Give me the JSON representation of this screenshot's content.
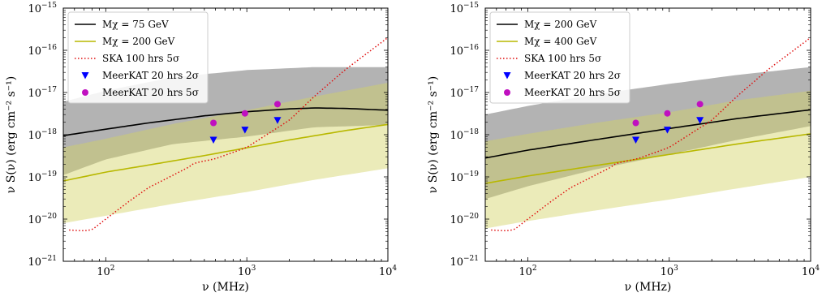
{
  "chart_data": [
    {
      "type": "line",
      "xlabel": "ν (MHz)",
      "ylabel": "ν S(ν) (erg cm⁻² s⁻¹)",
      "xscale": "log",
      "yscale": "log",
      "xlim": [
        50,
        10000
      ],
      "ylim": [
        1e-21,
        1e-15
      ],
      "xticks": [
        {
          "base": "10",
          "exp": "2"
        },
        {
          "base": "10",
          "exp": "3"
        },
        {
          "base": "10",
          "exp": "4"
        }
      ],
      "yticks": [
        {
          "base": "10",
          "exp": "−21"
        },
        {
          "base": "10",
          "exp": "−20"
        },
        {
          "base": "10",
          "exp": "−19"
        },
        {
          "base": "10",
          "exp": "−18"
        },
        {
          "base": "10",
          "exp": "−17"
        },
        {
          "base": "10",
          "exp": "−16"
        },
        {
          "base": "10",
          "exp": "−15"
        }
      ],
      "grid": false,
      "legend_position": "top-left",
      "bands": [
        {
          "color": "#808080",
          "alpha": 0.6,
          "x": [
            50,
            100,
            300,
            1000,
            3000,
            10000
          ],
          "lower": [
            1.1e-19,
            2.6e-19,
            6e-19,
            9e-19,
            1.5e-18,
            1.7e-18
          ],
          "upper": [
            6e-18,
            1.1e-17,
            2.3e-17,
            3.4e-17,
            4e-17,
            4e-17
          ]
        },
        {
          "color": "#d2d264",
          "alpha": 0.45,
          "x": [
            50,
            100,
            300,
            1000,
            3000,
            10000
          ],
          "lower": [
            8e-21,
            1.2e-20,
            2.3e-20,
            4.4e-20,
            8.5e-20,
            1.6e-19
          ],
          "upper": [
            5e-19,
            8e-19,
            1.8e-18,
            3.8e-18,
            8e-18,
            1.7e-17
          ]
        }
      ],
      "series": [
        {
          "name": "Mχ = 75 GeV",
          "style": "line",
          "color": "#000000",
          "x": [
            50,
            100,
            200,
            500,
            1000,
            2000,
            3000,
            5000,
            10000
          ],
          "y": [
            9.5e-19,
            1.35e-18,
            1.9e-18,
            2.8e-18,
            3.5e-18,
            4.1e-18,
            4.3e-18,
            4.2e-18,
            3.8e-18
          ]
        },
        {
          "name": "Mχ = 200 GeV",
          "style": "line",
          "color": "#b8b800",
          "x": [
            50,
            100,
            200,
            500,
            1000,
            2000,
            5000,
            10000
          ],
          "y": [
            8e-20,
            1.3e-19,
            1.9e-19,
            3.2e-19,
            4.9e-19,
            7.5e-19,
            1.25e-18,
            1.75e-18
          ]
        },
        {
          "name": "SKA 100 hrs 5σ",
          "style": "dotted",
          "color": "#e01010",
          "x": [
            55,
            70,
            80,
            100,
            150,
            200,
            300,
            400,
            420,
            600,
            1000,
            2000,
            3000,
            5000,
            10000
          ],
          "y": [
            5.5e-21,
            5.3e-21,
            5.6e-21,
            1e-20,
            2.8e-20,
            5.5e-20,
            1.1e-19,
            1.8e-19,
            2.1e-19,
            2.7e-19,
            5e-19,
            2.2e-18,
            8e-18,
            3.5e-17,
            2e-16
          ]
        },
        {
          "name": "MeerKAT 20 hrs 2σ",
          "style": "triangle-down",
          "color": "#0000ff",
          "x": [
            580,
            970,
            1650
          ],
          "y": [
            7.5e-19,
            1.3e-18,
            2.2e-18
          ]
        },
        {
          "name": "MeerKAT 20 hrs 5σ",
          "style": "circle",
          "color": "#c010c0",
          "x": [
            580,
            970,
            1650
          ],
          "y": [
            1.9e-18,
            3.2e-18,
            5.3e-18
          ]
        }
      ]
    },
    {
      "type": "line",
      "xlabel": "ν (MHz)",
      "ylabel": "ν S(ν) (erg cm⁻² s⁻¹)",
      "xscale": "log",
      "yscale": "log",
      "xlim": [
        50,
        10000
      ],
      "ylim": [
        1e-21,
        1e-15
      ],
      "xticks": [
        {
          "base": "10",
          "exp": "2"
        },
        {
          "base": "10",
          "exp": "3"
        },
        {
          "base": "10",
          "exp": "4"
        }
      ],
      "yticks": [
        {
          "base": "10",
          "exp": "−21"
        },
        {
          "base": "10",
          "exp": "−20"
        },
        {
          "base": "10",
          "exp": "−19"
        },
        {
          "base": "10",
          "exp": "−18"
        },
        {
          "base": "10",
          "exp": "−17"
        },
        {
          "base": "10",
          "exp": "−16"
        },
        {
          "base": "10",
          "exp": "−15"
        }
      ],
      "grid": false,
      "legend_position": "top-left",
      "bands": [
        {
          "color": "#808080",
          "alpha": 0.6,
          "x": [
            50,
            100,
            300,
            1000,
            3000,
            10000
          ],
          "lower": [
            3e-20,
            6e-20,
            1.5e-19,
            3.4e-19,
            7.5e-19,
            1.6e-18
          ],
          "upper": [
            3e-18,
            4.8e-18,
            9e-18,
            1.6e-17,
            2.6e-17,
            4e-17
          ]
        },
        {
          "color": "#d2d264",
          "alpha": 0.45,
          "x": [
            50,
            100,
            300,
            1000,
            3000,
            10000
          ],
          "lower": [
            6e-21,
            9e-21,
            1.6e-20,
            2.9e-20,
            5.3e-20,
            1e-19
          ],
          "upper": [
            7e-19,
            1.05e-18,
            1.9e-18,
            3.4e-18,
            6.5e-18,
            1.1e-17
          ]
        }
      ],
      "series": [
        {
          "name": "Mχ = 200 GeV",
          "style": "line",
          "color": "#000000",
          "x": [
            50,
            100,
            300,
            1000,
            3000,
            10000
          ],
          "y": [
            2.8e-19,
            4.3e-19,
            7.6e-19,
            1.4e-18,
            2.4e-18,
            3.9e-18
          ]
        },
        {
          "name": "Mχ = 400 GeV",
          "style": "line",
          "color": "#b8b800",
          "x": [
            50,
            100,
            300,
            1000,
            3000,
            10000
          ],
          "y": [
            7e-20,
            1.05e-19,
            1.85e-19,
            3.4e-19,
            6e-19,
            1.05e-18
          ]
        },
        {
          "name": "SKA 100 hrs 5σ",
          "style": "dotted",
          "color": "#e01010",
          "x": [
            55,
            70,
            80,
            100,
            150,
            200,
            300,
            400,
            420,
            600,
            1000,
            2000,
            3000,
            5000,
            10000
          ],
          "y": [
            5.5e-21,
            5.3e-21,
            5.6e-21,
            1e-20,
            2.8e-20,
            5.5e-20,
            1.1e-19,
            1.8e-19,
            2.1e-19,
            2.7e-19,
            5e-19,
            2.2e-18,
            8e-18,
            3.5e-17,
            2e-16
          ]
        },
        {
          "name": "MeerKAT 20 hrs 2σ",
          "style": "triangle-down",
          "color": "#0000ff",
          "x": [
            580,
            970,
            1650
          ],
          "y": [
            7.5e-19,
            1.3e-18,
            2.2e-18
          ]
        },
        {
          "name": "MeerKAT 20 hrs 5σ",
          "style": "circle",
          "color": "#c010c0",
          "x": [
            580,
            970,
            1650
          ],
          "y": [
            1.9e-18,
            3.2e-18,
            5.3e-18
          ]
        }
      ]
    }
  ]
}
